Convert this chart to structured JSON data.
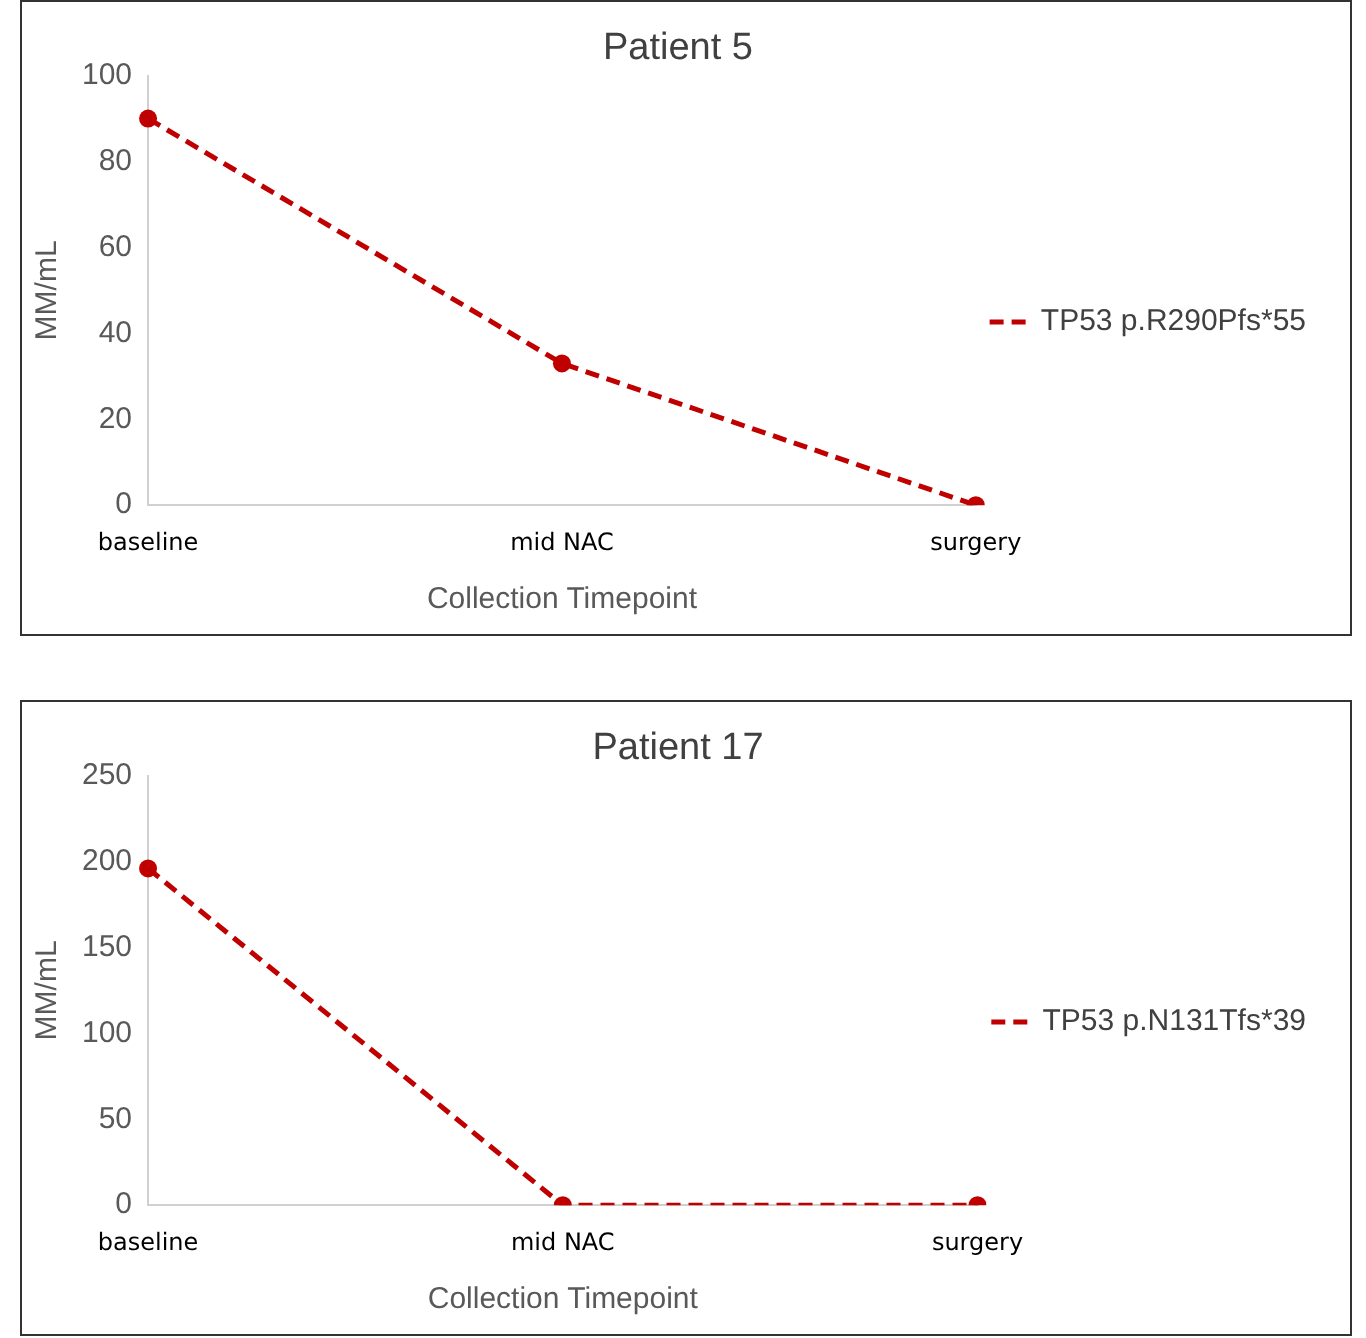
{
  "chart_data": [
    {
      "type": "line",
      "title": "Patient 5",
      "xlabel": "Collection Timepoint",
      "ylabel": "MM/mL",
      "categories": [
        "baseline",
        "mid NAC",
        "surgery"
      ],
      "series": [
        {
          "name": "TP53 p.R290Pfs*55",
          "color": "#c00000",
          "values": [
            90,
            33,
            0
          ]
        }
      ],
      "ylim": [
        0,
        100
      ],
      "yticks": [
        0,
        20,
        40,
        60,
        80,
        100
      ],
      "legend": "right",
      "marker": "circle",
      "line_style": "dashed"
    },
    {
      "type": "line",
      "title": "Patient 17",
      "xlabel": "Collection Timepoint",
      "ylabel": "MM/mL",
      "categories": [
        "baseline",
        "mid NAC",
        "surgery"
      ],
      "series": [
        {
          "name": "TP53 p.N131Tfs*39",
          "color": "#c00000",
          "values": [
            196,
            0,
            0
          ]
        }
      ],
      "ylim": [
        0,
        250
      ],
      "yticks": [
        0,
        50,
        100,
        150,
        200,
        250
      ],
      "legend": "right",
      "marker": "circle",
      "line_style": "dashed"
    }
  ]
}
